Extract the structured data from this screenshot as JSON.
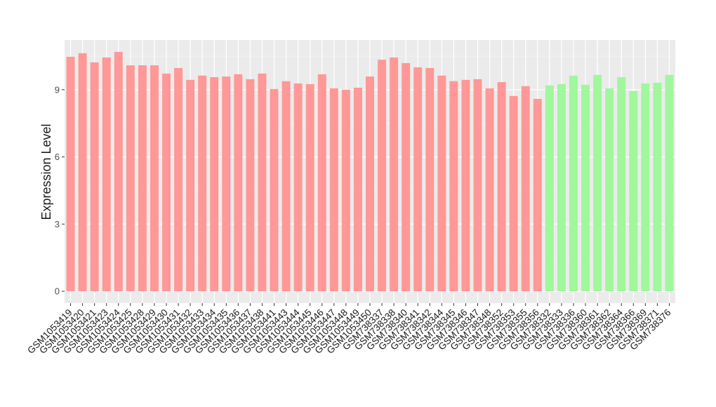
{
  "chart_data": {
    "type": "bar",
    "y_label": "Expression Level",
    "categories": [
      "GSM1053419",
      "GSM1053420",
      "GSM1053421",
      "GSM1053423",
      "GSM1053424",
      "GSM1053425",
      "GSM1053428",
      "GSM1053429",
      "GSM1053430",
      "GSM1053431",
      "GSM1053432",
      "GSM1053433",
      "GSM1053434",
      "GSM1053435",
      "GSM1053436",
      "GSM1053437",
      "GSM1053438",
      "GSM1053441",
      "GSM1053443",
      "GSM1053444",
      "GSM1053445",
      "GSM1053446",
      "GSM1053447",
      "GSM1053448",
      "GSM1053449",
      "GSM1053450",
      "GSM738337",
      "GSM738338",
      "GSM738340",
      "GSM738341",
      "GSM738342",
      "GSM738344",
      "GSM738345",
      "GSM738346",
      "GSM738347",
      "GSM738348",
      "GSM738352",
      "GSM738353",
      "GSM738355",
      "GSM738356",
      "GSM738332",
      "GSM738333",
      "GSM738336",
      "GSM738360",
      "GSM738361",
      "GSM738362",
      "GSM738364",
      "GSM738366",
      "GSM738369",
      "GSM738371",
      "GSM738376"
    ],
    "values": [
      10.47,
      10.63,
      10.22,
      10.44,
      10.69,
      10.09,
      10.09,
      10.09,
      9.72,
      9.97,
      9.44,
      9.63,
      9.56,
      9.59,
      9.69,
      9.47,
      9.72,
      9.03,
      9.38,
      9.28,
      9.25,
      9.69,
      9.06,
      9.0,
      9.09,
      9.59,
      10.34,
      10.44,
      10.19,
      10.0,
      9.97,
      9.63,
      9.38,
      9.44,
      9.47,
      9.06,
      9.34,
      8.72,
      9.16,
      8.59,
      9.19,
      9.25,
      9.63,
      9.22,
      9.66,
      9.06,
      9.56,
      8.94,
      9.28,
      9.31,
      9.66
    ],
    "colors": [
      "#ff9896",
      "#ff9896",
      "#ff9896",
      "#ff9896",
      "#ff9896",
      "#ff9896",
      "#ff9896",
      "#ff9896",
      "#ff9896",
      "#ff9896",
      "#ff9896",
      "#ff9896",
      "#ff9896",
      "#ff9896",
      "#ff9896",
      "#ff9896",
      "#ff9896",
      "#ff9896",
      "#ff9896",
      "#ff9896",
      "#ff9896",
      "#ff9896",
      "#ff9896",
      "#ff9896",
      "#ff9896",
      "#ff9896",
      "#ff9896",
      "#ff9896",
      "#ff9896",
      "#ff9896",
      "#ff9896",
      "#ff9896",
      "#ff9896",
      "#ff9896",
      "#ff9896",
      "#ff9896",
      "#ff9896",
      "#ff9896",
      "#ff9896",
      "#ff9896",
      "#a0f79c",
      "#a0f79c",
      "#a0f79c",
      "#a0f79c",
      "#a0f79c",
      "#a0f79c",
      "#a0f79c",
      "#a0f79c",
      "#a0f79c",
      "#a0f79c",
      "#a0f79c"
    ],
    "ylim": [
      -0.53,
      11.22
    ],
    "yticks": [
      0,
      3,
      6,
      9
    ],
    "minor_yticks": [
      1.5,
      4.5,
      7.5,
      10.5
    ],
    "grid": true
  }
}
